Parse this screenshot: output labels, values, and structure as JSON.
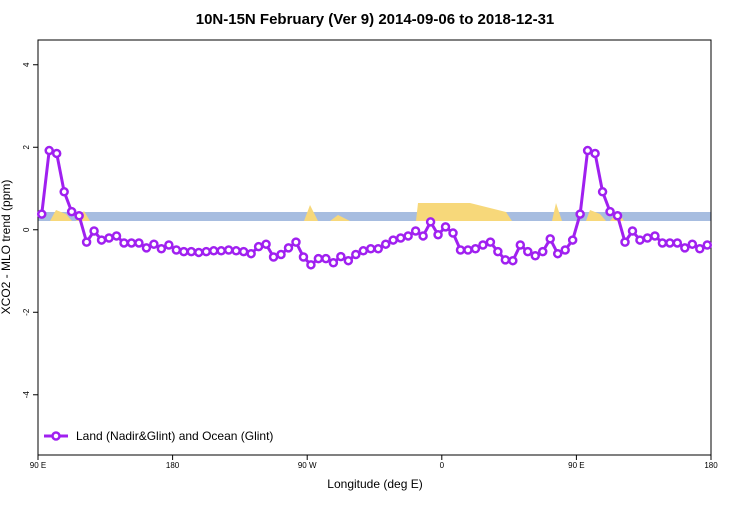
{
  "chart_data": {
    "type": "line",
    "title": "10N-15N February (Ver 9)   2014-09-06 to 2018-12-31",
    "x_label": "Longitude (deg E)",
    "y_label": "XCO2 - MLO trend (ppm)",
    "x": [
      92.5,
      97.5,
      102.5,
      107.5,
      112.5,
      117.5,
      122.5,
      127.5,
      132.5,
      137.5,
      142.5,
      147.5,
      152.5,
      157.5,
      162.5,
      167.5,
      172.5,
      177.5,
      182.5,
      187.5,
      192.5,
      197.5,
      202.5,
      207.5,
      212.5,
      217.5,
      222.5,
      227.5,
      232.5,
      237.5,
      242.5,
      247.5,
      252.5,
      257.5,
      262.5,
      267.5,
      272.5,
      277.5,
      282.5,
      287.5,
      292.5,
      297.5,
      302.5,
      307.5,
      312.5,
      317.5,
      322.5,
      327.5,
      332.5,
      337.5,
      342.5,
      347.5,
      352.5,
      357.5,
      362.5,
      367.5,
      372.5,
      377.5,
      382.5,
      387.5,
      392.5,
      397.5,
      402.5,
      407.5,
      412.5,
      417.5,
      422.5,
      427.5,
      432.5,
      437.5,
      442.5,
      447.5,
      452.5,
      457.5,
      462.5,
      467.5,
      472.5,
      477.5,
      482.5,
      487.5,
      492.5,
      497.5,
      502.5,
      507.5,
      512.5,
      517.5,
      522.5,
      527.5,
      532.5,
      537.5
    ],
    "series": [
      {
        "name": "Land (Nadir&Glint) and Ocean (Glint)",
        "color": "#a020f0",
        "values": [
          0.38,
          1.92,
          1.85,
          0.92,
          0.44,
          0.34,
          -0.3,
          -0.03,
          -0.25,
          -0.2,
          -0.15,
          -0.32,
          -0.32,
          -0.32,
          -0.44,
          -0.35,
          -0.46,
          -0.37,
          -0.49,
          -0.53,
          -0.53,
          -0.55,
          -0.53,
          -0.51,
          -0.51,
          -0.49,
          -0.51,
          -0.53,
          -0.58,
          -0.41,
          -0.35,
          -0.66,
          -0.6,
          -0.44,
          -0.3,
          -0.66,
          -0.85,
          -0.7,
          -0.7,
          -0.8,
          -0.65,
          -0.75,
          -0.6,
          -0.51,
          -0.46,
          -0.46,
          -0.35,
          -0.25,
          -0.2,
          -0.15,
          -0.03,
          -0.15,
          0.19,
          -0.12,
          0.07,
          -0.08,
          -0.49,
          -0.49,
          -0.46,
          -0.37,
          -0.3,
          -0.53,
          -0.73,
          -0.75,
          -0.37,
          -0.53,
          -0.63,
          -0.53,
          -0.22,
          -0.58,
          -0.49,
          -0.25,
          0.38,
          1.92,
          1.85,
          0.92,
          0.44,
          0.34,
          -0.3,
          -0.03,
          -0.25,
          -0.2,
          -0.15,
          -0.32,
          -0.32,
          -0.32,
          -0.44,
          -0.35,
          -0.46,
          -0.37
        ]
      }
    ],
    "xlim": [
      90,
      540
    ],
    "xticks": [
      {
        "value": 90,
        "label": "90 E"
      },
      180,
      {
        "value": 270,
        "label": "90 W"
      },
      {
        "value": 360,
        "label": "0"
      },
      {
        "value": 450,
        "label": "90 E"
      },
      {
        "value": 540,
        "label": "180"
      }
    ],
    "ylim": [
      -5.46,
      4.6
    ],
    "yticks": [
      -4,
      -2,
      0,
      2,
      4
    ],
    "legend": "bottom-left"
  }
}
